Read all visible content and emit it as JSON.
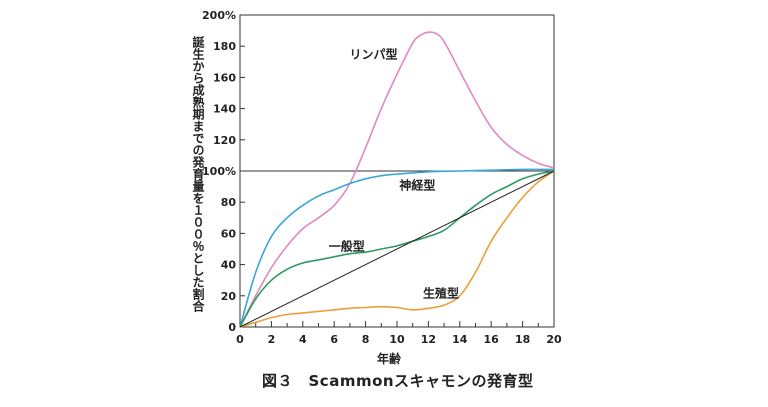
{
  "chart_data": {
    "type": "line",
    "title": "",
    "caption": "図３　Scammonスキャモンの発育型",
    "xlabel": "年齢",
    "ylabel": "誕生から成熟期までの発育量を１００％とした割合",
    "xlim": [
      0,
      20
    ],
    "ylim": [
      0,
      200
    ],
    "x_ticks": [
      "0",
      "2",
      "4",
      "6",
      "8",
      "10",
      "12",
      "14",
      "16",
      "18",
      "20"
    ],
    "y_ticks": [
      "0",
      "20",
      "40",
      "60",
      "80",
      "100%",
      "120",
      "140",
      "160",
      "180",
      "200%"
    ],
    "reference_line": {
      "y": 100
    },
    "series": [
      {
        "name": "リンパ型",
        "color": "#e08ac0",
        "x": [
          0,
          1,
          2,
          3,
          4,
          5,
          6,
          7,
          8,
          9,
          10,
          11,
          11.5,
          12,
          12.5,
          13,
          14,
          15,
          16,
          17,
          18,
          19,
          20
        ],
        "y": [
          0,
          20,
          38,
          52,
          63,
          70,
          78,
          92,
          115,
          140,
          162,
          182,
          187,
          189,
          188,
          183,
          164,
          145,
          128,
          117,
          110,
          105,
          102
        ]
      },
      {
        "name": "神経型",
        "color": "#3aa6d6",
        "x": [
          0,
          1,
          2,
          3,
          4,
          5,
          6,
          7,
          8,
          9,
          10,
          12,
          14,
          16,
          18,
          20
        ],
        "y": [
          0,
          35,
          58,
          70,
          78,
          84,
          88,
          92,
          95,
          97,
          98,
          99.5,
          100,
          100.5,
          101,
          101
        ]
      },
      {
        "name": "一般型",
        "color": "#2e9a62",
        "x": [
          0,
          1,
          2,
          3,
          4,
          5,
          6,
          7,
          8,
          9,
          10,
          11,
          12,
          13,
          14,
          15,
          16,
          17,
          18,
          19,
          20
        ],
        "y": [
          0,
          18,
          30,
          37,
          41,
          43,
          45,
          47,
          48,
          50,
          52,
          55,
          58,
          62,
          70,
          78,
          85,
          90,
          95,
          98,
          100
        ]
      },
      {
        "name": "生殖型",
        "color": "#e8a038",
        "x": [
          0,
          1,
          2,
          3,
          4,
          5,
          6,
          7,
          8,
          9,
          10,
          11,
          12,
          13,
          14,
          15,
          16,
          17,
          18,
          19,
          20
        ],
        "y": [
          0,
          3,
          6,
          8,
          9,
          10,
          11,
          12,
          12.5,
          13,
          12.5,
          11,
          12,
          14,
          20,
          35,
          55,
          70,
          83,
          93,
          100
        ]
      },
      {
        "name": "",
        "color": "#222222",
        "x": [
          0,
          20
        ],
        "y": [
          0,
          100
        ]
      }
    ],
    "grid": false
  }
}
